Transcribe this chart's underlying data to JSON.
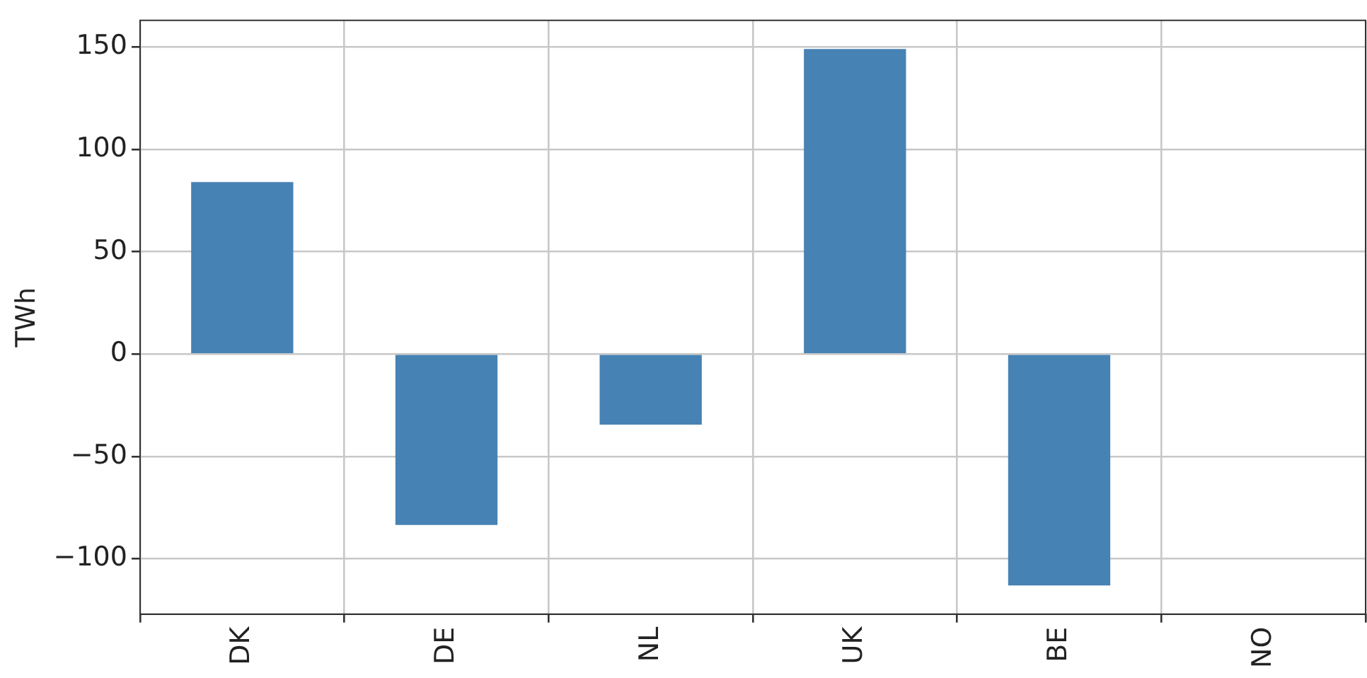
{
  "chart_data": {
    "type": "bar",
    "ylabel": "TWh",
    "categories": [
      "DK",
      "DE",
      "NL",
      "UK",
      "BE",
      "NO"
    ],
    "values": [
      84,
      -83.5,
      -34.5,
      149,
      -113,
      0
    ],
    "color": "#4682b4",
    "ylim": [
      -127,
      163
    ],
    "yticks": [
      -100,
      -50,
      0,
      50,
      100,
      150
    ],
    "grid": true,
    "legend": false
  }
}
